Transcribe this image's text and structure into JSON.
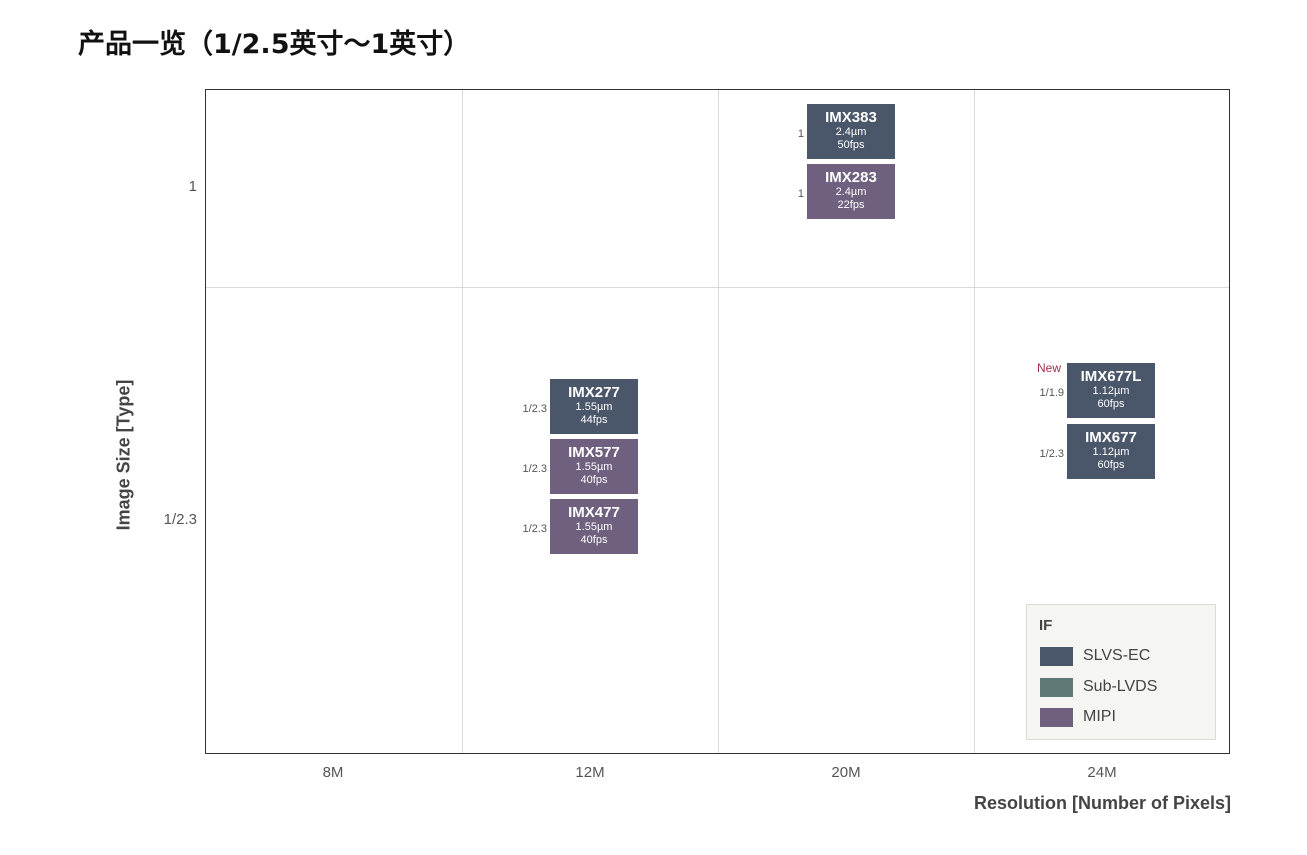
{
  "page": {
    "title": "产品一览（1/2.5英寸～1英寸）"
  },
  "chart_data": {
    "type": "table",
    "xlabel": "Resolution [Number of Pixels]",
    "ylabel": "Image Size [Type]",
    "x_categories": [
      "8M",
      "12M",
      "20M",
      "24M"
    ],
    "y_categories": [
      "1",
      "1/2.3"
    ],
    "grid": true,
    "legend": {
      "title": "IF",
      "placement": "bottom-right",
      "entries": [
        {
          "label": "SLVS-EC",
          "color": "#4a566a"
        },
        {
          "label": "Sub-LVDS",
          "color": "#5f7a76"
        },
        {
          "label": "MIPI",
          "color": "#6e607e"
        }
      ]
    },
    "products": [
      {
        "name": "IMX383",
        "pixel": "2.4µm",
        "fps": "50fps",
        "size": "1",
        "resolution": "20M",
        "if": "SLVS-EC",
        "row": "1",
        "new": ""
      },
      {
        "name": "IMX283",
        "pixel": "2.4µm",
        "fps": "22fps",
        "size": "1",
        "resolution": "20M",
        "if": "MIPI",
        "row": "1",
        "new": ""
      },
      {
        "name": "IMX277",
        "pixel": "1.55µm",
        "fps": "44fps",
        "size": "1/2.3",
        "resolution": "12M",
        "if": "SLVS-EC",
        "row": "1/2.3",
        "new": ""
      },
      {
        "name": "IMX577",
        "pixel": "1.55µm",
        "fps": "40fps",
        "size": "1/2.3",
        "resolution": "12M",
        "if": "MIPI",
        "row": "1/2.3",
        "new": ""
      },
      {
        "name": "IMX477",
        "pixel": "1.55µm",
        "fps": "40fps",
        "size": "1/2.3",
        "resolution": "12M",
        "if": "MIPI",
        "row": "1/2.3",
        "new": ""
      },
      {
        "name": "IMX677L",
        "pixel": "1.12µm",
        "fps": "60fps",
        "size": "1/1.9",
        "resolution": "24M",
        "if": "SLVS-EC",
        "row": "1/2.3",
        "new": "New"
      },
      {
        "name": "IMX677",
        "pixel": "1.12µm",
        "fps": "60fps",
        "size": "1/2.3",
        "resolution": "24M",
        "if": "SLVS-EC",
        "row": "1/2.3",
        "new": ""
      }
    ]
  }
}
